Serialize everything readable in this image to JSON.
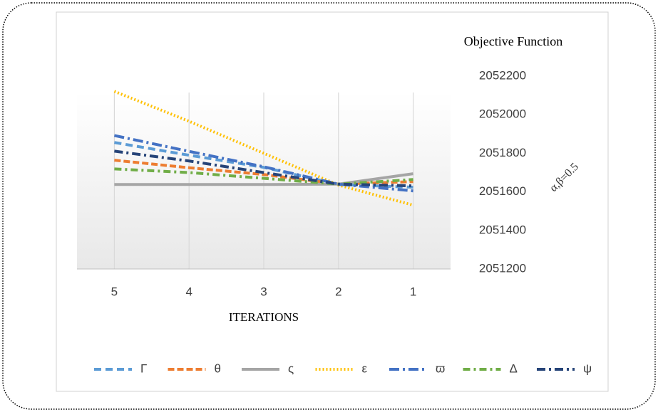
{
  "chart_data": {
    "type": "line",
    "title": "Objective Function",
    "annotation": "α,β=0.5",
    "x_label": "ITERATIONS",
    "categories": [
      "5",
      "4",
      "3",
      "2",
      "1"
    ],
    "ylim": [
      2051200,
      2052200
    ],
    "yticks": [
      2051200,
      2051400,
      2051600,
      2051800,
      2052000,
      2052200
    ],
    "y_axis_side": "right",
    "grid": "vertical",
    "legend": "bottom",
    "series": [
      {
        "name": "Γ",
        "color": "#5b9bd5",
        "dash": "10,6",
        "values": [
          2051856,
          2051790,
          2051727,
          2051638,
          2051624
        ]
      },
      {
        "name": "θ",
        "color": "#ed7d31",
        "dash": "9,4",
        "values": [
          2051764,
          2051725,
          2051690,
          2051640,
          2051653
        ]
      },
      {
        "name": "ς",
        "color": "#a5a5a5",
        "dash": "none",
        "values": [
          2051638,
          2051638,
          2051638,
          2051640,
          2051694
        ]
      },
      {
        "name": "ε",
        "color": "#ffc000",
        "dash": "2,3",
        "values": [
          2052121,
          2051966,
          2051800,
          2051635,
          2051531
        ]
      },
      {
        "name": "ϖ",
        "color": "#4472c4",
        "dash": "14,5,3,5",
        "values": [
          2051892,
          2051810,
          2051730,
          2051640,
          2051605
        ]
      },
      {
        "name": "Δ",
        "color": "#70ad47",
        "dash": "10,5,3,5",
        "values": [
          2051719,
          2051700,
          2051670,
          2051640,
          2051664
        ]
      },
      {
        "name": "ψ",
        "color": "#264478",
        "dash": "12,5,3,5",
        "values": [
          2051811,
          2051760,
          2051700,
          2051640,
          2051631
        ]
      }
    ]
  }
}
